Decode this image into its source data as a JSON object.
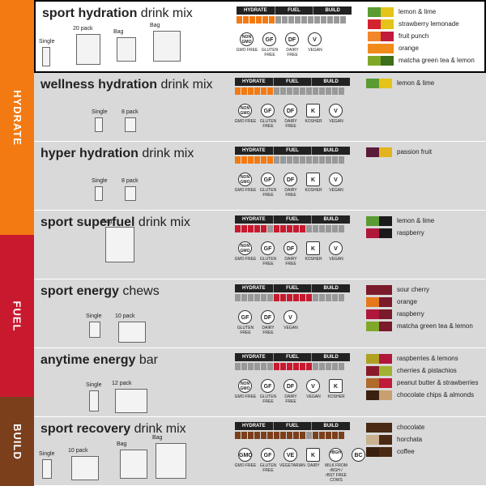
{
  "sidebar": {
    "hydrate": {
      "label": "HYDRATE",
      "color": "#f37a12"
    },
    "fuel": {
      "label": "FUEL",
      "color": "#c9192e"
    },
    "build": {
      "label": "BUILD",
      "color": "#7b3f1c"
    }
  },
  "categories": [
    "HYDRATE",
    "FUEL",
    "BUILD"
  ],
  "products": [
    {
      "name_bold": "sport hydration",
      "name_rest": "drink mix",
      "packs": [
        "Single",
        "20 pack",
        "Bag",
        "Bag"
      ],
      "badges": [
        {
          "t": "NON GMO",
          "l": "GMO FREE"
        },
        {
          "t": "GF",
          "l": "GLUTEN FREE"
        },
        {
          "t": "DF",
          "l": "DAIRY FREE"
        },
        {
          "t": "V",
          "l": "VEGAN"
        }
      ],
      "flavors": [
        {
          "n": "lemon & lime",
          "c1": "#5b9b34",
          "c2": "#e4c31a"
        },
        {
          "n": "strawberry lemonade",
          "c1": "#d4222f",
          "c2": "#e4c31a"
        },
        {
          "n": "fruit punch",
          "c1": "#f1862a",
          "c2": "#c01b3a"
        },
        {
          "n": "orange",
          "c1": "#f18a1a",
          "c2": "#f18a1a"
        },
        {
          "n": "matcha green tea & lemon",
          "c1": "#80a828",
          "c2": "#3d6e1c"
        }
      ]
    },
    {
      "name_bold": "wellness hydration",
      "name_rest": "drink mix",
      "packs": [
        "Single",
        "8 pack"
      ],
      "badges": [
        {
          "t": "NON GMO",
          "l": "GMO FREE"
        },
        {
          "t": "GF",
          "l": "GLUTEN FREE"
        },
        {
          "t": "DF",
          "l": "DAIRY FREE"
        },
        {
          "t": "K",
          "l": "KOSHER"
        },
        {
          "t": "V",
          "l": "VEGAN"
        }
      ],
      "flavors": [
        {
          "n": "lemon & lime",
          "c1": "#5b9b34",
          "c2": "#e4c31a"
        }
      ]
    },
    {
      "name_bold": "hyper hydration",
      "name_rest": "drink mix",
      "packs": [
        "Single",
        "8 pack"
      ],
      "badges": [
        {
          "t": "NON GMO",
          "l": "GMO FREE"
        },
        {
          "t": "GF",
          "l": "GLUTEN FREE"
        },
        {
          "t": "DF",
          "l": "DAIRY FREE"
        },
        {
          "t": "K",
          "l": "KOSHER"
        },
        {
          "t": "V",
          "l": "VEGAN"
        }
      ],
      "flavors": [
        {
          "n": "passion fruit",
          "c1": "#5a1a3a",
          "c2": "#e4b420"
        }
      ]
    },
    {
      "name_bold": "sport superfuel",
      "name_rest": "drink mix",
      "packs": [
        "Bag"
      ],
      "badges": [
        {
          "t": "NON GMO",
          "l": "GMO FREE"
        },
        {
          "t": "GF",
          "l": "GLUTEN FREE"
        },
        {
          "t": "DF",
          "l": "DAIRY FREE"
        },
        {
          "t": "K",
          "l": "KOSHER"
        },
        {
          "t": "V",
          "l": "VEGAN"
        }
      ],
      "flavors": [
        {
          "n": "lemon & lime",
          "c1": "#5b9b34",
          "c2": "#1a1a1a"
        },
        {
          "n": "raspberry",
          "c1": "#b0173a",
          "c2": "#1a1a1a"
        }
      ]
    },
    {
      "name_bold": "sport energy",
      "name_rest": "chews",
      "packs": [
        "Single",
        "10 pack"
      ],
      "badges": [
        {
          "t": "GF",
          "l": "GLUTEN FREE"
        },
        {
          "t": "DF",
          "l": "DAIRY FREE"
        },
        {
          "t": "V",
          "l": "VEGAN"
        }
      ],
      "flavors": [
        {
          "n": "sour cherry",
          "c1": "#7a1a2a",
          "c2": "#7a1a2a"
        },
        {
          "n": "orange",
          "c1": "#e4781a",
          "c2": "#7a1a2a"
        },
        {
          "n": "raspberry",
          "c1": "#b0173a",
          "c2": "#7a1a2a"
        },
        {
          "n": "matcha green tea & lemon",
          "c1": "#80a828",
          "c2": "#7a1a2a"
        }
      ]
    },
    {
      "name_bold": "anytime energy",
      "name_rest": "bar",
      "packs": [
        "Single",
        "12 pack"
      ],
      "badges": [
        {
          "t": "NON GMO",
          "l": "GMO FREE"
        },
        {
          "t": "GF",
          "l": "GLUTEN FREE"
        },
        {
          "t": "DF",
          "l": "DAIRY FREE"
        },
        {
          "t": "V",
          "l": "VEGAN"
        },
        {
          "t": "K",
          "l": "KOSHER"
        }
      ],
      "flavors": [
        {
          "n": "raspberries & lemons",
          "c1": "#b0a020",
          "c2": "#b0173a"
        },
        {
          "n": "cherries & pistachios",
          "c1": "#8a1a2a",
          "c2": "#a0b030"
        },
        {
          "n": "peanut butter & strawberries",
          "c1": "#b06a2a",
          "c2": "#c01b3a"
        },
        {
          "n": "chocolate chips & almonds",
          "c1": "#3a2010",
          "c2": "#c8a070"
        }
      ]
    },
    {
      "name_bold": "sport recovery",
      "name_rest": "drink mix",
      "packs": [
        "Single",
        "10 pack",
        "Bag",
        "Bag"
      ],
      "badges": [
        {
          "t": "GMO",
          "l": "GMO FREE"
        },
        {
          "t": "GF",
          "l": "GLUTEN FREE"
        },
        {
          "t": "VE",
          "l": "VEGETARIAN"
        },
        {
          "t": "K",
          "l": "DAIRY"
        },
        {
          "t": "rBGH",
          "l": "MILK FROM rBGH / rBST FREE COWS"
        },
        {
          "t": "BC",
          "l": ""
        }
      ],
      "flavors": [
        {
          "n": "chocolate",
          "c1": "#4a2a14",
          "c2": "#4a2a14"
        },
        {
          "n": "horchata",
          "c1": "#c8b090",
          "c2": "#4a2a14"
        },
        {
          "n": "coffee",
          "c1": "#3a2010",
          "c2": "#4a2a14"
        }
      ]
    }
  ]
}
